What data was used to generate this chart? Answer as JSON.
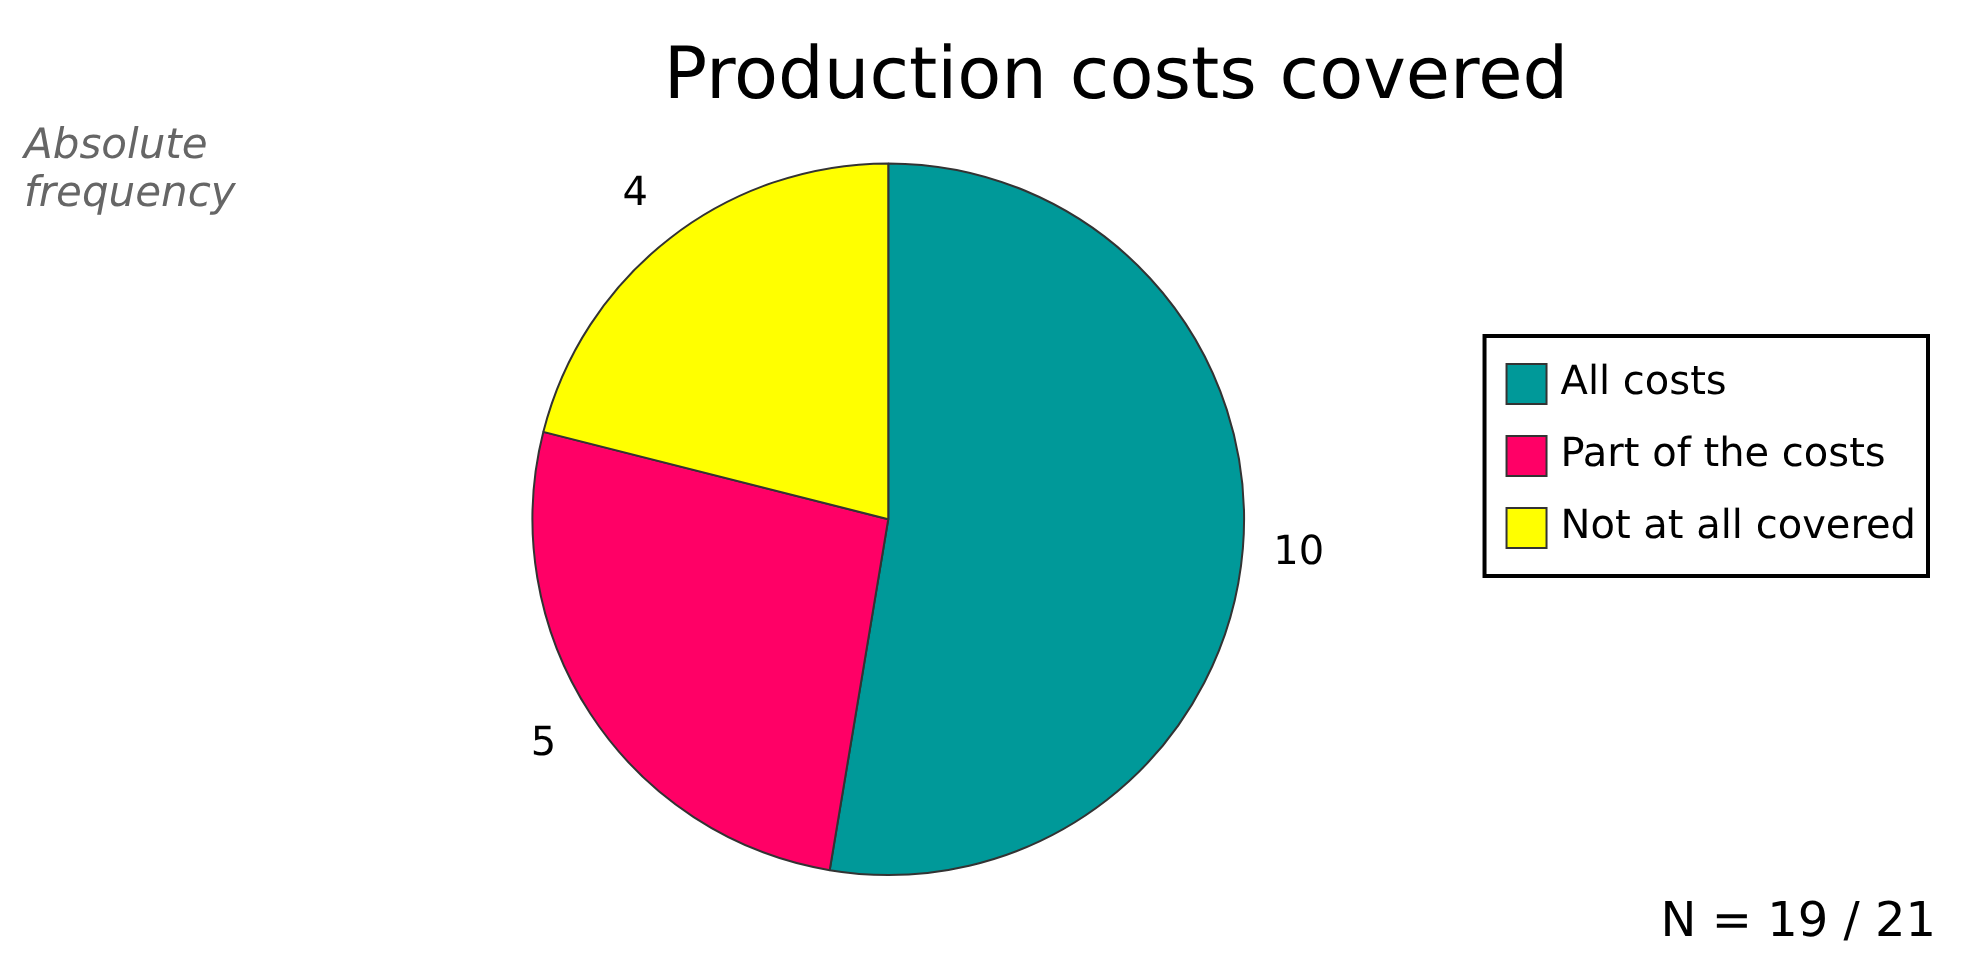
{
  "chart_data": {
    "type": "pie",
    "title": "Production costs covered",
    "categories": [
      "All costs",
      "Part of the costs",
      "Not at all covered"
    ],
    "values": [
      10,
      5,
      4
    ],
    "colors": [
      "#009999",
      "#ff0066",
      "#ffff00"
    ],
    "data_labels": true,
    "legend": "right",
    "annotations": [
      "Absolute frequency",
      "N = 19 / 21"
    ]
  }
}
